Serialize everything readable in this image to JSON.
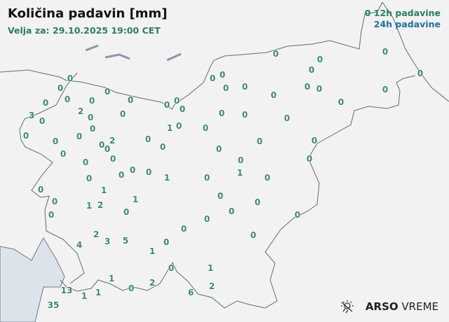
{
  "header": {
    "title": "Količina padavin [mm]",
    "valid_for": "Velja za: 29.10.2025 19:00 CET"
  },
  "legend": {
    "sample_value": "0",
    "label_12h": "12h padavine",
    "label_24h": "24h padavine",
    "color_12h": "#2e7d5b",
    "color_24h": "#1f6ea3"
  },
  "stations": [
    "0",
    "0",
    "0",
    "0",
    "0",
    "0",
    "0",
    "2",
    "0",
    "3",
    "0",
    "0",
    "0",
    "0",
    "0",
    "0",
    "0",
    "2",
    "0",
    "0",
    "0",
    "0",
    "0",
    "0",
    "0",
    "1",
    "0",
    "0",
    "0",
    "0",
    "0",
    "0",
    "0",
    "0",
    "0",
    "0",
    "0",
    "0",
    "0",
    "0",
    "0",
    "0",
    "0",
    "0",
    "0",
    "0",
    "0",
    "0",
    "0",
    "0",
    "0",
    "0",
    "0",
    "1",
    "0",
    "0",
    "1",
    "0",
    "1",
    "2",
    "1",
    "0",
    "0",
    "0",
    "0",
    "0",
    "2",
    "4",
    "3",
    "5",
    "0",
    "1",
    "0",
    "1",
    "1",
    "0",
    "2",
    "2",
    "6",
    "13",
    "1",
    "1",
    "35",
    "1",
    "0",
    "0",
    "0",
    "0",
    "0",
    "0",
    "0",
    "0"
  ],
  "logo": {
    "brand": "ARSO",
    "product": "VREME",
    "icon": "sun-rain-icon"
  }
}
